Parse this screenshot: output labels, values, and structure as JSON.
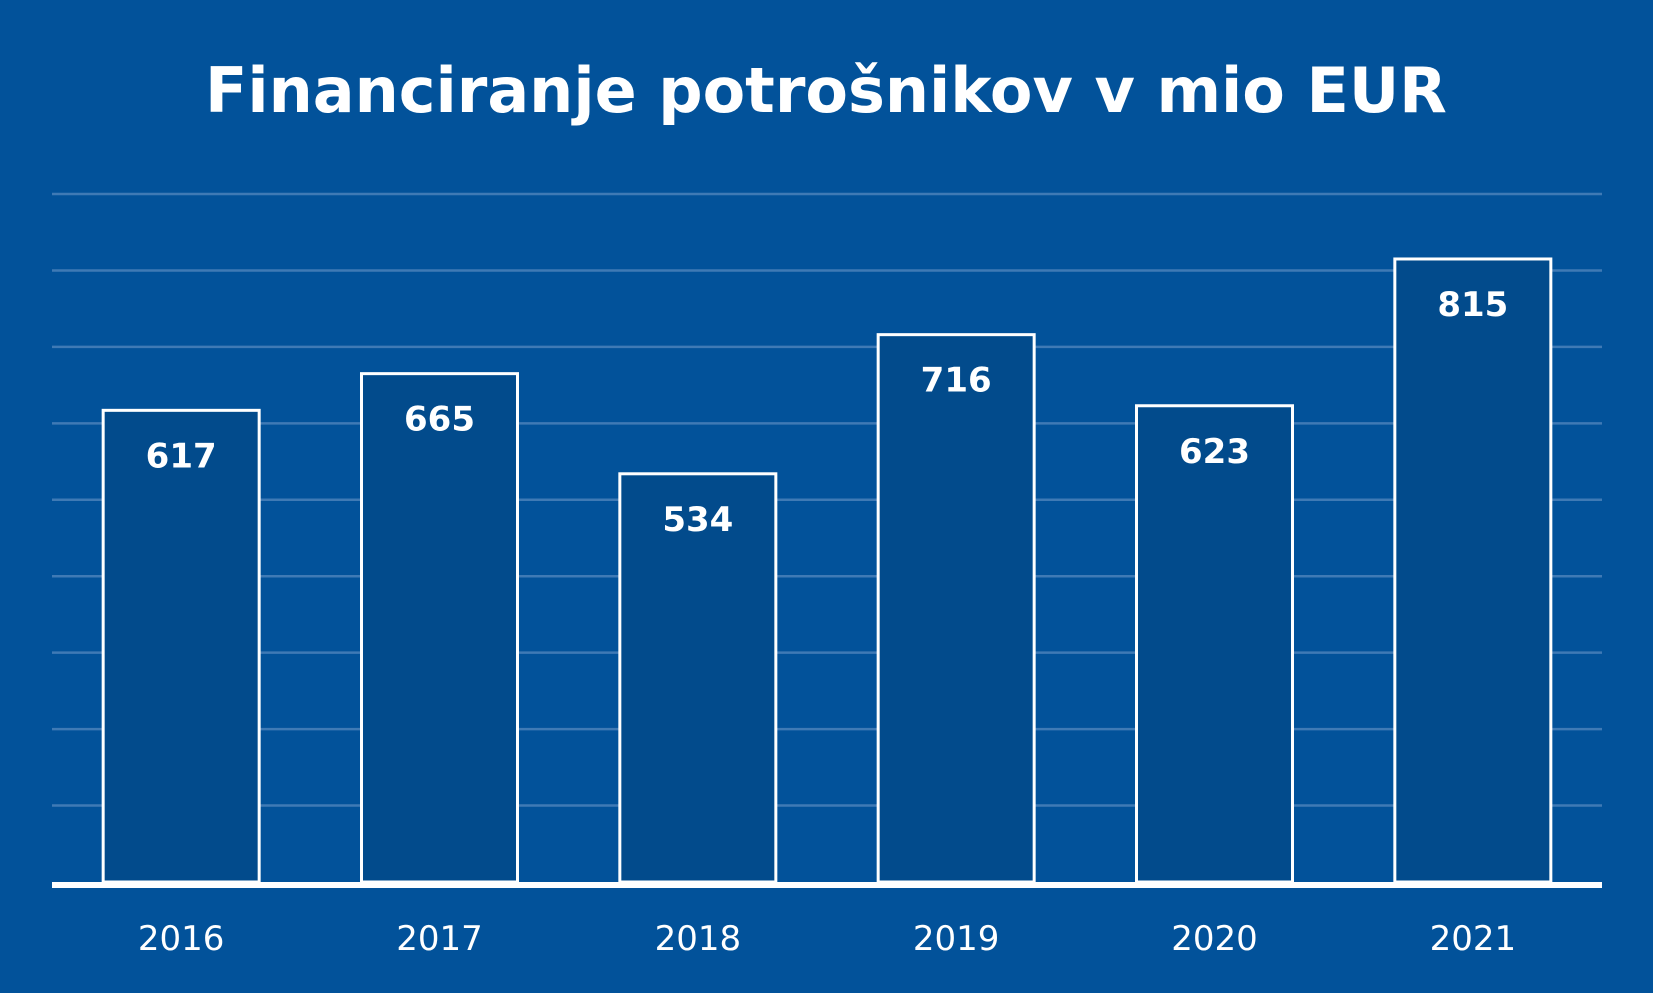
{
  "chart_data": {
    "type": "bar",
    "title": "Financiranje potrošnikov v mio EUR",
    "xlabel": "",
    "ylabel": "",
    "categories": [
      "2016",
      "2017",
      "2018",
      "2019",
      "2020",
      "2021"
    ],
    "values": [
      617,
      665,
      534,
      716,
      623,
      815
    ],
    "data_labels": [
      "617",
      "665",
      "534",
      "716",
      "623",
      "815"
    ],
    "ylim": [
      0,
      900
    ],
    "grid_step": 100,
    "grid": true,
    "legend": "none"
  },
  "colors": {
    "background": "#02529a",
    "bar_fill": "#024b8c",
    "bar_stroke": "#ffffff",
    "gridline": "#3f7ab5",
    "axis": "#ffffff",
    "text": "#ffffff"
  }
}
